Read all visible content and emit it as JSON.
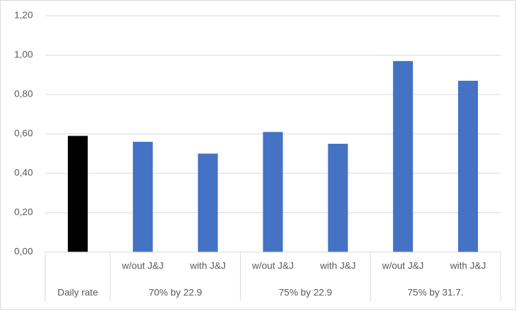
{
  "chart_data": {
    "type": "bar",
    "groups": [
      {
        "label": "Daily rate",
        "categories": [
          null
        ]
      },
      {
        "label": "70% by 22.9",
        "categories": [
          "w/out J&J",
          "with J&J"
        ]
      },
      {
        "label": "75% by 22.9",
        "categories": [
          "w/out J&J",
          "with J&J"
        ]
      },
      {
        "label": "75% by 31.7.",
        "categories": [
          "w/out J&J",
          "with J&J"
        ]
      }
    ],
    "values": [
      0.59,
      0.56,
      0.5,
      0.61,
      0.55,
      0.97,
      0.87
    ],
    "colors": [
      "#000000",
      "#4472c4",
      "#4472c4",
      "#4472c4",
      "#4472c4",
      "#4472c4",
      "#4472c4"
    ],
    "ylim": [
      0,
      1.2
    ],
    "yticks": [
      {
        "value": 0,
        "label": "0,00"
      },
      {
        "value": 0.2,
        "label": "0,20"
      },
      {
        "value": 0.4,
        "label": "0,40"
      },
      {
        "value": 0.6,
        "label": "0,60"
      },
      {
        "value": 0.8,
        "label": "0,80"
      },
      {
        "value": 1.0,
        "label": "1,00"
      },
      {
        "value": 1.2,
        "label": "1,20"
      }
    ],
    "grid": true
  }
}
